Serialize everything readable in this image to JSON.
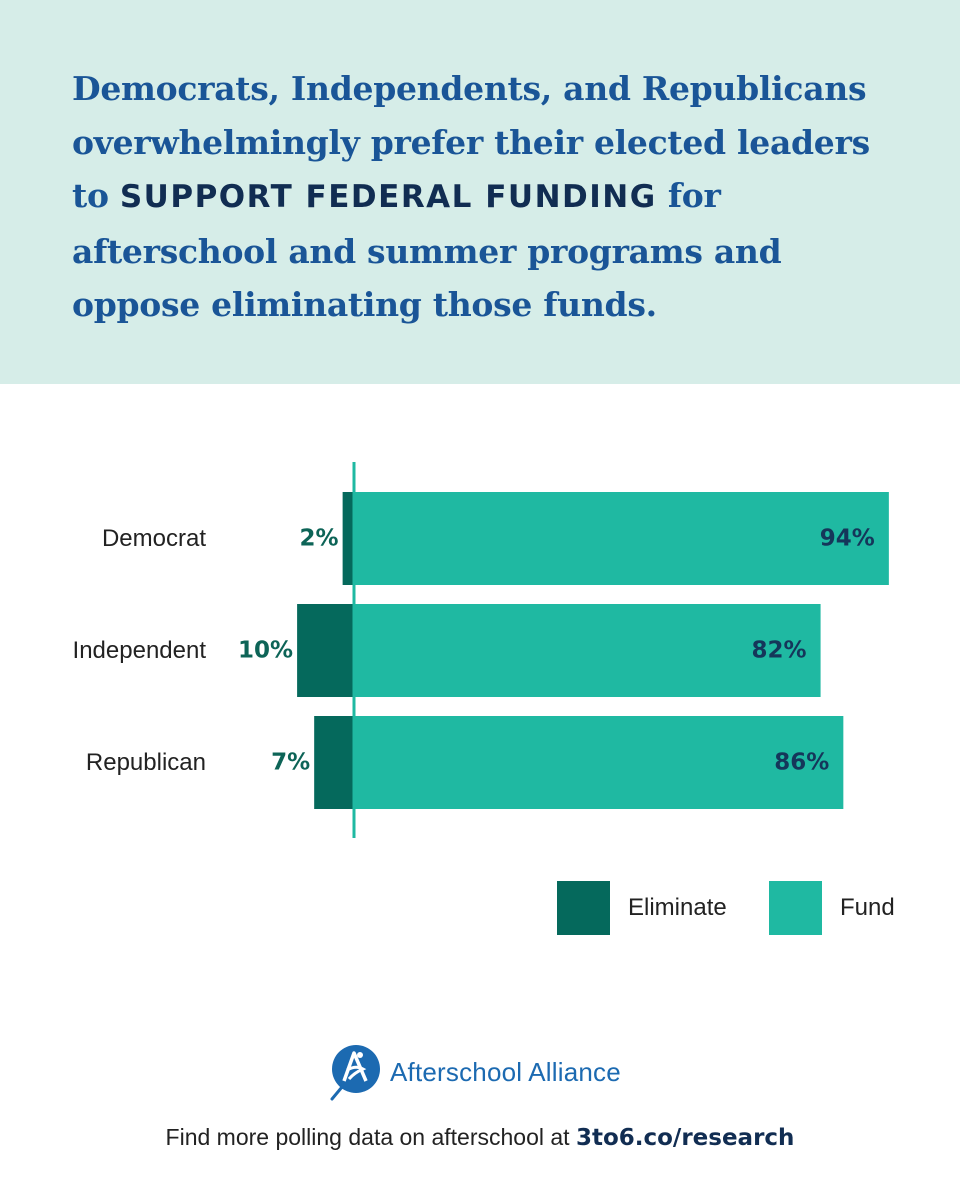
{
  "header": {
    "headline_before": "Democrats, Independents, and Republicans overwhelmingly prefer their elected leaders to ",
    "headline_emphasis": "SUPPORT FEDERAL FUNDING",
    "headline_after": " for afterschool and summer programs and oppose eliminating those funds."
  },
  "chart_data": {
    "type": "bar",
    "orientation": "horizontal",
    "layout": "diverging",
    "categories": [
      "Democrat",
      "Independent",
      "Republican"
    ],
    "series": [
      {
        "name": "Eliminate",
        "values": [
          2,
          10,
          7
        ],
        "labels": [
          "2%",
          "10%",
          "7%"
        ],
        "color": "#05695c"
      },
      {
        "name": "Fund",
        "values": [
          94,
          82,
          86
        ],
        "labels": [
          "94%",
          "82%",
          "86%"
        ],
        "color": "#1fb9a2"
      }
    ],
    "axis_color": "#1fb9a2",
    "grid": false,
    "legend_placement": "bottom-right"
  },
  "legend": {
    "eliminate_label": "Eliminate",
    "fund_label": "Fund"
  },
  "brand": {
    "name": "Afterschool Alliance",
    "color": "#1c6ab1",
    "icon": "afterschool-alliance-logo-icon"
  },
  "footer": {
    "text": "Find more polling data on afterschool at ",
    "link": "3to6.co/research"
  }
}
